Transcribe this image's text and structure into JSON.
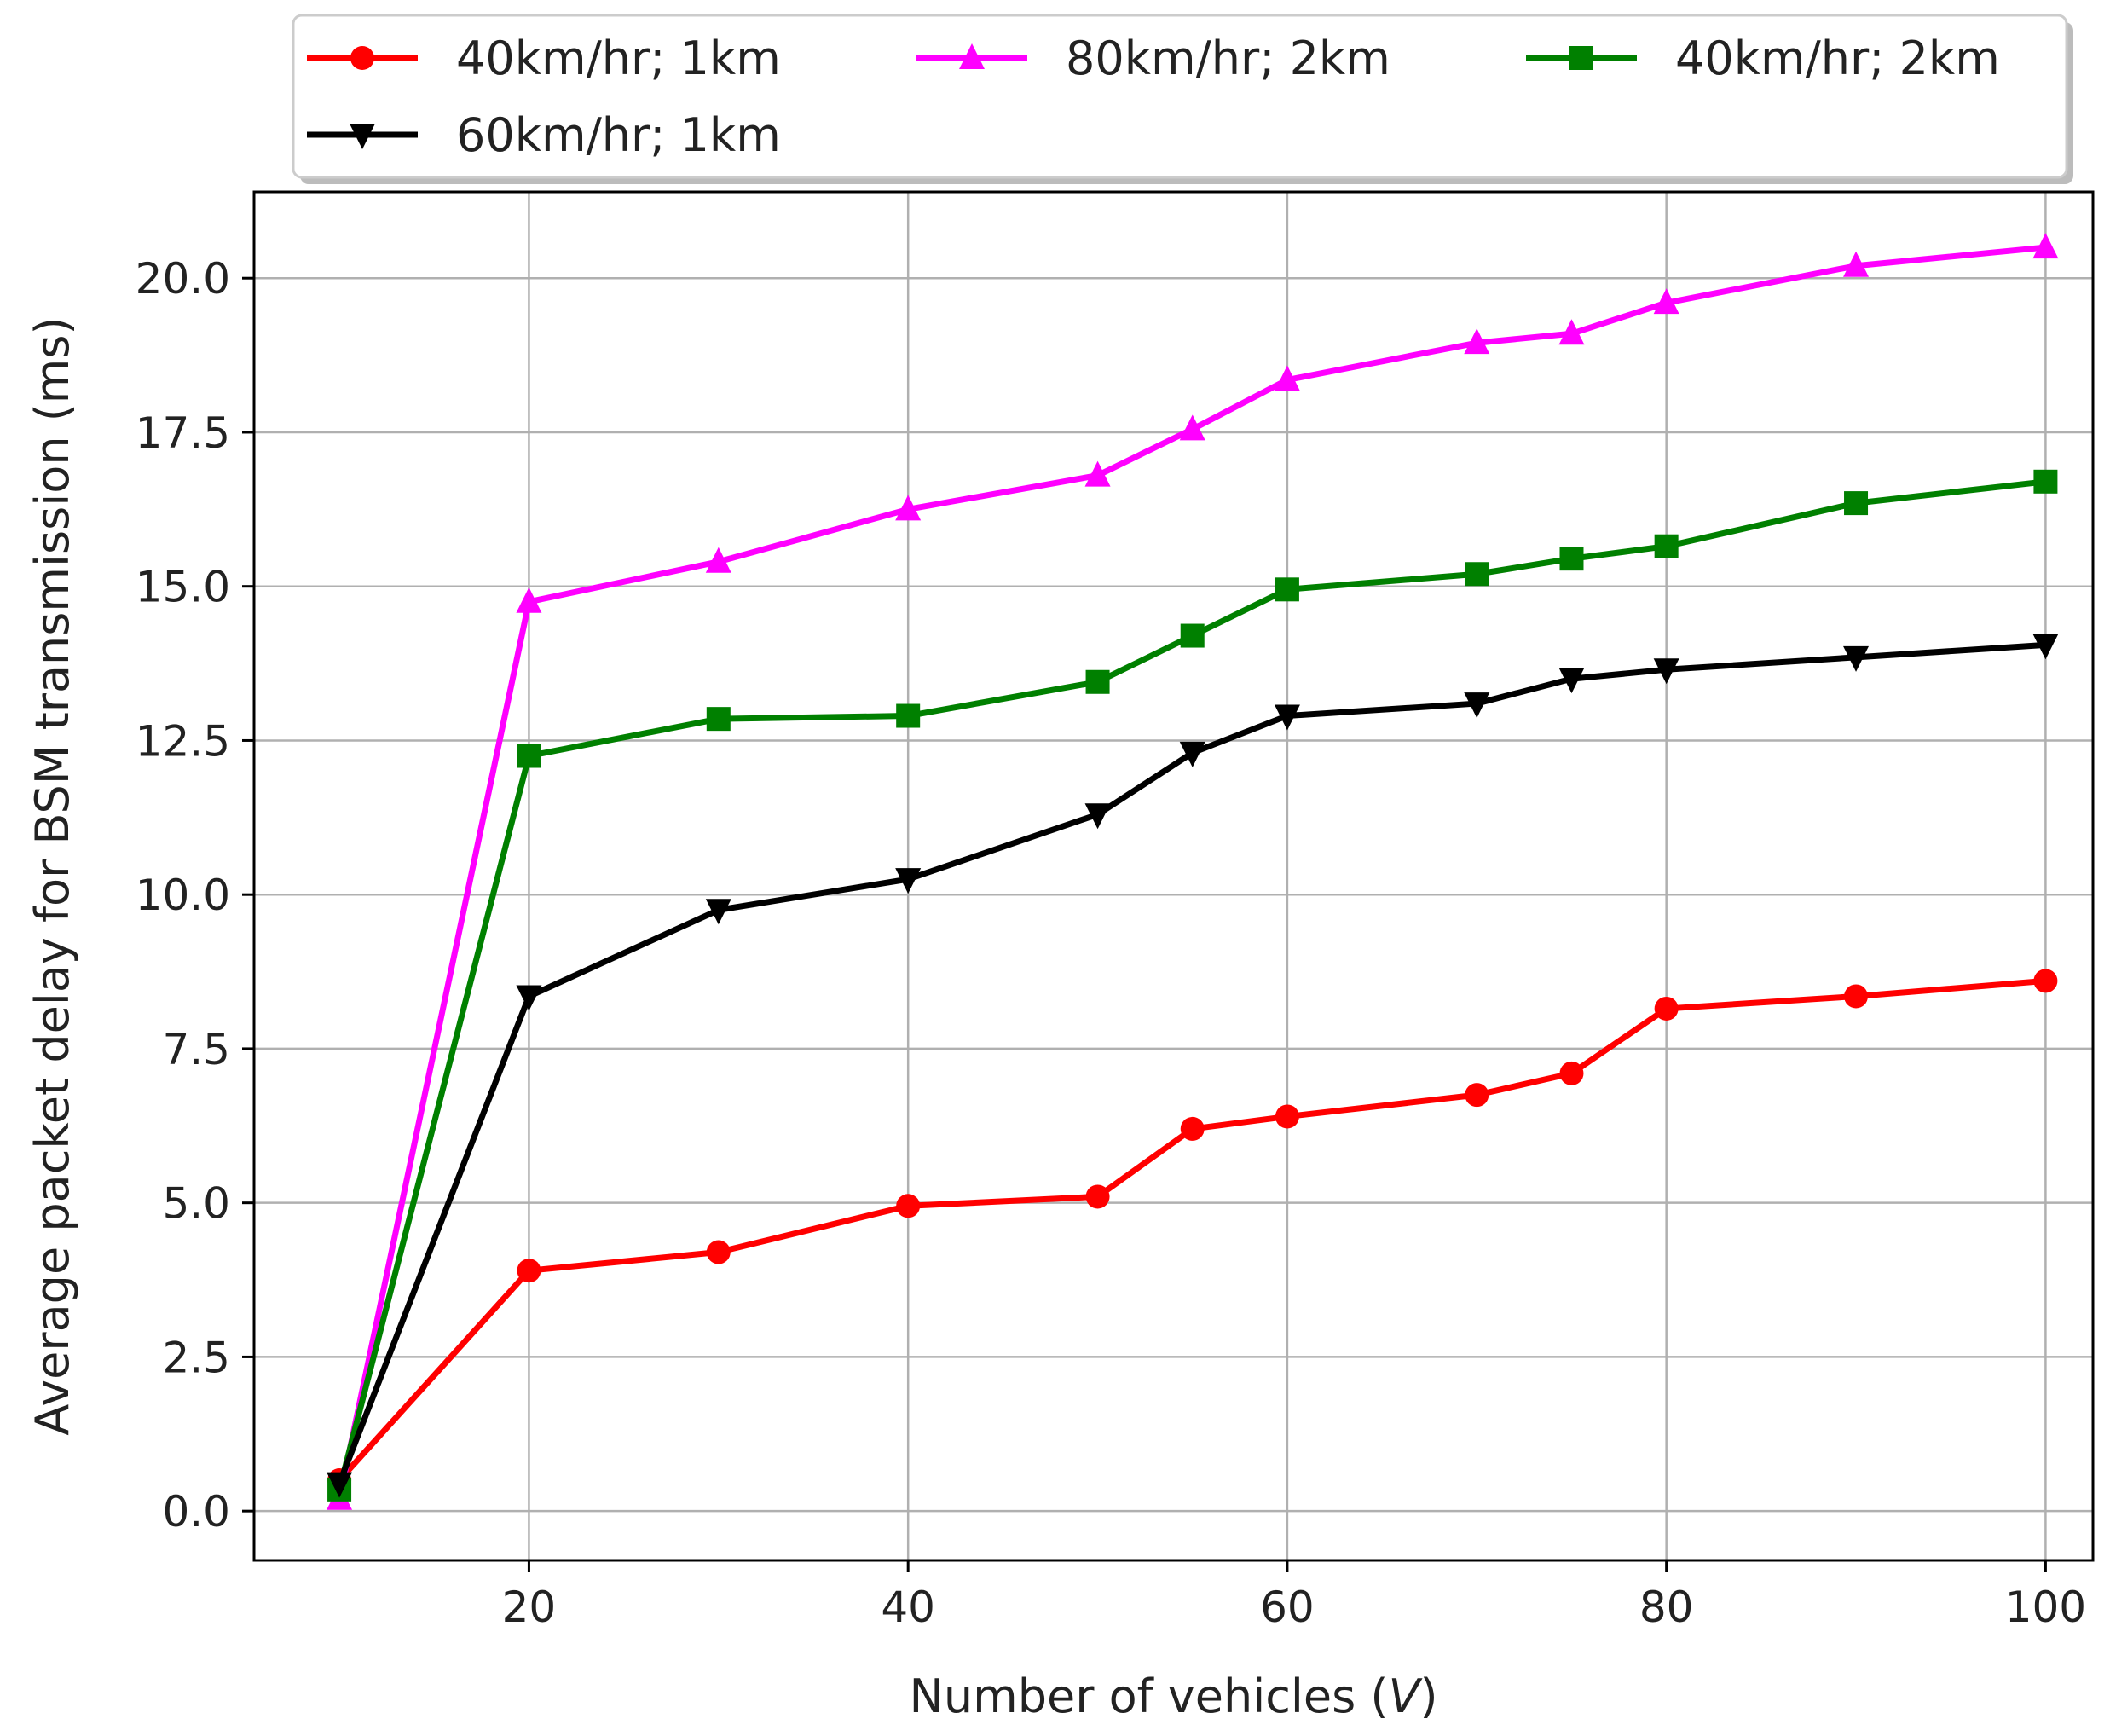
{
  "chart_data": {
    "type": "line",
    "title": "",
    "xlabel": "Number of vehicles (V)",
    "xlabel_prefix": "Number of vehicles (",
    "xlabel_var": "V",
    "xlabel_suffix": ")",
    "ylabel": "Average packet delay for BSM transmission (ms)",
    "xlim": [
      5.5,
      102.5
    ],
    "ylim": [
      -0.8,
      21.4
    ],
    "xticks": [
      20,
      40,
      60,
      80,
      100
    ],
    "yticks": [
      "0.0",
      "2.5",
      "5.0",
      "7.5",
      "10.0",
      "12.5",
      "15.0",
      "17.5",
      "20.0"
    ],
    "grid": true,
    "legend_position": "top, above plot",
    "x": [
      10,
      20,
      30,
      40,
      50,
      55,
      60,
      70,
      75,
      80,
      90,
      100
    ],
    "series": [
      {
        "name": "40km/hr; 1km",
        "color": "#ff0000",
        "marker": "circle",
        "values": [
          0.5,
          3.9,
          4.2,
          4.95,
          5.1,
          6.2,
          6.4,
          6.75,
          7.1,
          8.15,
          8.35,
          8.6
        ]
      },
      {
        "name": "80km/hr; 2km",
        "color": "#ff00ff",
        "marker": "triangle-up",
        "values": [
          0.2,
          14.75,
          15.4,
          16.25,
          16.8,
          17.55,
          18.35,
          18.95,
          19.1,
          19.6,
          20.2,
          20.5
        ]
      },
      {
        "name": "40km/hr; 2km",
        "color": "#008000",
        "marker": "square",
        "values": [
          0.35,
          12.25,
          12.85,
          12.9,
          13.45,
          14.2,
          14.95,
          15.2,
          15.45,
          15.65,
          16.35,
          16.7
        ]
      },
      {
        "name": "60km/hr; 1km",
        "color": "#000000",
        "marker": "triangle-down",
        "values": [
          0.45,
          8.35,
          9.75,
          10.25,
          11.3,
          12.3,
          12.9,
          13.1,
          13.5,
          13.65,
          13.85,
          14.05
        ]
      }
    ]
  }
}
